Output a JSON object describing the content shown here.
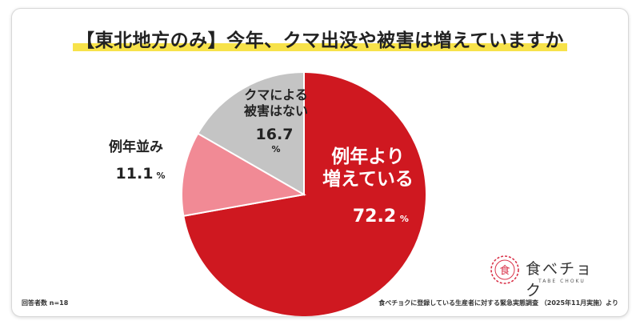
{
  "chart_data": {
    "type": "pie",
    "title": "【東北地方のみ】今年、クマ出没や被害は増えていますか",
    "slices": [
      {
        "label_lines": [
          "例年より",
          "増えている"
        ],
        "value": 72.2,
        "display": "72.2",
        "unit": "%",
        "color": "#cf1820",
        "label_color": "#ffffff"
      },
      {
        "label_lines": [
          "例年並み"
        ],
        "value": 11.1,
        "display": "11.1",
        "unit": "%",
        "color": "#f18a95",
        "label_color": "#222222"
      },
      {
        "label_lines": [
          "クマによる",
          "被害はない"
        ],
        "value": 16.7,
        "display": "16.7",
        "unit": "%",
        "color": "#c4c4c4",
        "label_color": "#222222"
      }
    ],
    "start": "12 o'clock",
    "direction": "clockwise"
  },
  "footnotes": {
    "respondents": "回答者数 n=18",
    "source": "食べチョクに登録している生産者に対する緊急実態調査 （2025年11月実施）より"
  },
  "logo": {
    "name": "食べチョク",
    "sub": "TABE CHOKU",
    "mark_text": "食"
  }
}
